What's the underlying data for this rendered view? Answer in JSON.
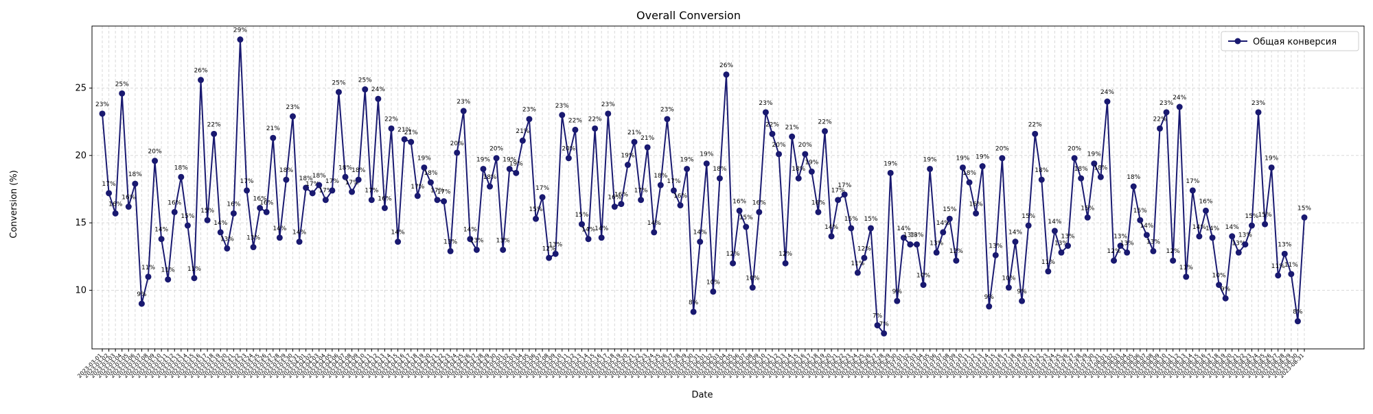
{
  "chart_data": {
    "type": "line",
    "title": "Overall Conversion",
    "x_label": "Date",
    "y_label": "Conversion (%)",
    "categories": [
      "2023-03-01",
      "2023-03-02",
      "2023-03-03",
      "2023-03-04",
      "2023-03-05",
      "2023-03-06",
      "2023-03-07",
      "2023-03-08",
      "2023-03-09",
      "2023-03-10",
      "2023-03-11",
      "2023-03-12",
      "2023-03-13",
      "2023-03-14",
      "2023-03-15",
      "2023-03-16",
      "2023-03-17",
      "2023-03-18",
      "2023-03-19",
      "2023-03-20",
      "2023-03-21",
      "2023-03-22",
      "2023-03-23",
      "2023-03-24",
      "2023-03-25",
      "2023-03-26",
      "2023-03-27",
      "2023-03-28",
      "2023-03-29",
      "2023-03-30",
      "2023-03-31",
      "2023-04-01",
      "2023-04-02",
      "2023-04-03",
      "2023-04-04",
      "2023-04-05",
      "2023-04-06",
      "2023-04-07",
      "2023-04-08",
      "2023-04-09",
      "2023-04-10",
      "2023-04-11",
      "2023-04-12",
      "2023-04-13",
      "2023-04-14",
      "2023-04-15",
      "2023-04-16",
      "2023-04-17",
      "2023-04-18",
      "2023-04-19",
      "2023-04-20",
      "2023-04-21",
      "2023-04-22",
      "2023-04-23",
      "2023-04-24",
      "2023-04-25",
      "2023-04-26",
      "2023-04-27",
      "2023-04-28",
      "2023-04-29",
      "2023-04-30",
      "2023-05-01",
      "2023-05-02",
      "2023-05-03",
      "2023-05-04",
      "2023-05-05",
      "2023-05-06",
      "2023-05-07",
      "2023-05-08",
      "2023-05-09",
      "2023-05-10",
      "2023-05-11",
      "2023-05-12",
      "2023-05-13",
      "2023-05-14",
      "2023-05-15",
      "2023-05-16",
      "2023-05-17",
      "2023-05-18",
      "2023-05-19",
      "2023-05-20",
      "2023-05-21",
      "2023-05-22",
      "2023-05-23",
      "2023-05-24",
      "2023-05-25",
      "2023-05-26",
      "2023-05-27",
      "2023-05-28",
      "2023-05-29",
      "2023-05-30",
      "2023-05-31",
      "2023-06-01",
      "2023-06-02",
      "2023-06-03",
      "2023-06-04",
      "2023-06-05",
      "2023-06-06",
      "2023-06-07",
      "2023-06-08",
      "2023-06-09",
      "2023-06-10",
      "2023-06-11",
      "2023-06-12",
      "2023-06-13",
      "2023-06-14",
      "2023-06-15",
      "2023-06-16",
      "2023-06-17",
      "2023-06-18",
      "2023-06-19",
      "2023-06-20",
      "2023-06-21",
      "2023-06-22",
      "2023-06-23",
      "2023-06-24",
      "2023-06-25",
      "2023-06-26",
      "2023-06-27",
      "2023-06-28",
      "2023-06-29",
      "2023-06-30",
      "2023-07-01",
      "2023-07-02",
      "2023-07-03",
      "2023-07-04",
      "2023-07-05",
      "2023-07-06",
      "2023-07-07",
      "2023-07-08",
      "2023-07-09",
      "2023-07-10",
      "2023-07-11",
      "2023-07-12",
      "2023-07-13",
      "2023-07-14",
      "2023-07-15",
      "2023-07-16",
      "2023-07-17",
      "2023-07-18",
      "2023-07-19",
      "2023-07-20",
      "2023-07-21",
      "2023-07-22",
      "2023-07-23",
      "2023-07-24",
      "2023-07-25",
      "2023-07-26",
      "2023-07-27",
      "2023-07-28",
      "2023-07-29",
      "2023-07-30",
      "2023-07-31",
      "2023-08-01",
      "2023-08-02",
      "2023-08-03",
      "2023-08-04",
      "2023-08-05",
      "2023-08-06",
      "2023-08-07",
      "2023-08-08",
      "2023-08-09",
      "2023-08-10",
      "2023-08-11",
      "2023-08-12",
      "2023-08-13",
      "2023-08-14",
      "2023-08-15",
      "2023-08-16",
      "2023-08-17",
      "2023-08-18",
      "2023-08-19",
      "2023-08-20",
      "2023-08-21",
      "2023-08-22",
      "2023-08-23",
      "2023-08-24",
      "2023-08-25",
      "2023-08-26",
      "2023-08-27",
      "2023-08-28",
      "2023-08-29",
      "2023-08-30",
      "2023-08-31"
    ],
    "series": [
      {
        "name": "Общая конверсия",
        "color": "#191970",
        "values": [
          23.1,
          17.2,
          15.7,
          24.6,
          16.2,
          17.9,
          9.0,
          11.0,
          19.6,
          13.8,
          10.8,
          15.8,
          18.4,
          14.8,
          10.9,
          25.6,
          15.2,
          21.6,
          14.3,
          13.1,
          15.7,
          28.6,
          17.4,
          13.2,
          16.1,
          15.8,
          21.3,
          13.9,
          18.2,
          22.9,
          13.6,
          17.6,
          17.2,
          17.8,
          16.7,
          17.4,
          24.7,
          18.4,
          17.3,
          18.2,
          24.9,
          16.7,
          24.2,
          16.1,
          22.0,
          13.6,
          21.2,
          21.0,
          17.0,
          19.1,
          18.0,
          16.7,
          16.6,
          12.9,
          20.2,
          23.3,
          13.8,
          13.0,
          19.0,
          17.7,
          19.8,
          13.0,
          19.0,
          18.7,
          21.1,
          22.7,
          15.3,
          16.9,
          12.4,
          12.7,
          23.0,
          19.8,
          21.9,
          14.9,
          13.8,
          22.0,
          13.9,
          23.1,
          16.2,
          16.4,
          19.3,
          21.0,
          16.7,
          20.6,
          14.3,
          17.8,
          22.7,
          17.4,
          16.3,
          19.0,
          8.4,
          13.6,
          19.4,
          9.9,
          18.3,
          26.0,
          12.0,
          15.9,
          14.7,
          10.2,
          15.8,
          23.2,
          21.6,
          20.1,
          12.0,
          21.4,
          18.3,
          20.1,
          18.8,
          15.8,
          21.8,
          14.0,
          16.7,
          17.1,
          14.6,
          11.3,
          12.4,
          14.6,
          7.4,
          6.8,
          18.7,
          9.2,
          13.9,
          13.4,
          13.4,
          10.4,
          19.0,
          12.8,
          14.3,
          15.3,
          12.2,
          19.1,
          18.0,
          15.7,
          19.2,
          8.8,
          12.6,
          19.8,
          10.2,
          13.6,
          9.2,
          14.8,
          21.6,
          18.2,
          11.4,
          14.4,
          12.8,
          13.3,
          19.8,
          18.3,
          15.4,
          19.4,
          18.4,
          24.0,
          12.2,
          13.3,
          12.8,
          17.7,
          15.2,
          14.1,
          12.9,
          22.0,
          23.2,
          12.2,
          23.6,
          11.0,
          17.4,
          14.0,
          15.9,
          13.9,
          10.4,
          9.4,
          14.0,
          12.8,
          13.4,
          14.8,
          23.2,
          14.9,
          19.1,
          11.1,
          12.7,
          11.2,
          7.7,
          15.4
        ],
        "value_labels": [
          "23%",
          "17%",
          "16%",
          "25%",
          "16%",
          "18%",
          "9%",
          "11%",
          "20%",
          "14%",
          "11%",
          "16%",
          "18%",
          "15%",
          "11%",
          "26%",
          "15%",
          "22%",
          "14%",
          "13%",
          "16%",
          "29%",
          "17%",
          "13%",
          "16%",
          "16%",
          "21%",
          "14%",
          "18%",
          "23%",
          "14%",
          "18%",
          "17%",
          "18%",
          "17%",
          "17%",
          "25%",
          "18%",
          "17%",
          "18%",
          "25%",
          "17%",
          "24%",
          "16%",
          "22%",
          "14%",
          "21%",
          "21%",
          "17%",
          "19%",
          "18%",
          "17%",
          "17%",
          "13%",
          "20%",
          "23%",
          "14%",
          "13%",
          "19%",
          "18%",
          "20%",
          "13%",
          "19%",
          "19%",
          "21%",
          "23%",
          "15%",
          "17%",
          "12%",
          "13%",
          "23%",
          "20%",
          "22%",
          "15%",
          "14%",
          "22%",
          "14%",
          "23%",
          "16%",
          "16%",
          "19%",
          "21%",
          "17%",
          "21%",
          "14%",
          "18%",
          "23%",
          "17%",
          "16%",
          "19%",
          "8%",
          "14%",
          "19%",
          "10%",
          "18%",
          "26%",
          "12%",
          "16%",
          "15%",
          "10%",
          "16%",
          "23%",
          "22%",
          "20%",
          "12%",
          "21%",
          "18%",
          "20%",
          "19%",
          "16%",
          "22%",
          "14%",
          "17%",
          "17%",
          "15%",
          "11%",
          "12%",
          "15%",
          "7%",
          "7%",
          "19%",
          "9%",
          "14%",
          "13%",
          "13%",
          "10%",
          "19%",
          "13%",
          "14%",
          "15%",
          "12%",
          "19%",
          "18%",
          "16%",
          "19%",
          "9%",
          "13%",
          "20%",
          "10%",
          "14%",
          "9%",
          "15%",
          "22%",
          "18%",
          "11%",
          "14%",
          "13%",
          "13%",
          "20%",
          "18%",
          "15%",
          "19%",
          "18%",
          "24%",
          "12%",
          "13%",
          "13%",
          "18%",
          "15%",
          "14%",
          "13%",
          "22%",
          "23%",
          "12%",
          "24%",
          "11%",
          "17%",
          "14%",
          "16%",
          "14%",
          "10%",
          "9%",
          "14%",
          "13%",
          "13%",
          "15%",
          "23%",
          "15%",
          "19%",
          "11%",
          "13%",
          "11%",
          "8%",
          "15%"
        ]
      }
    ],
    "ylim": [
      5.65,
      29.6
    ],
    "yticks": [
      10,
      15,
      20,
      25
    ],
    "grid": true,
    "legend": "upper right"
  }
}
